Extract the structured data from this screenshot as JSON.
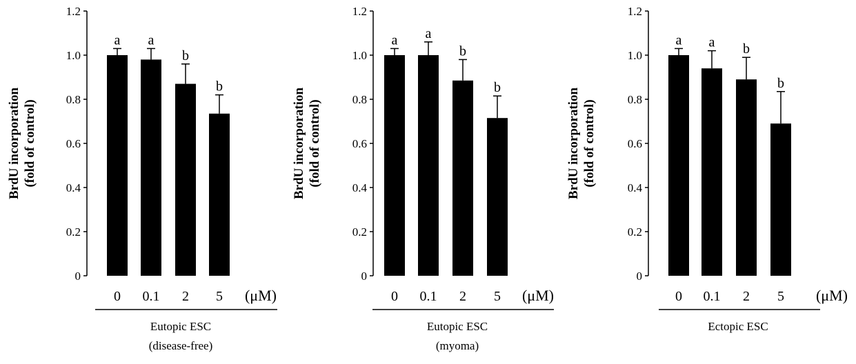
{
  "chart_data": [
    {
      "type": "bar",
      "ylabel_line1": "BrdU incorporation",
      "ylabel_line2": "(fold of control)",
      "categories": [
        "0",
        "0.1",
        "2",
        "5"
      ],
      "unit": "(μM)",
      "values": [
        1.0,
        0.98,
        0.87,
        0.735
      ],
      "errors": [
        0.03,
        0.05,
        0.09,
        0.085
      ],
      "significance": [
        "a",
        "a",
        "b",
        "b"
      ],
      "ylim": [
        0,
        1.2
      ],
      "yticks": [
        "0",
        "0.2",
        "0.4",
        "0.6",
        "0.8",
        "1.0",
        "1.2"
      ],
      "group_line1": "Eutopic ESC",
      "group_line2": "(disease-free)"
    },
    {
      "type": "bar",
      "ylabel_line1": "BrdU incorporation",
      "ylabel_line2": "(fold of control)",
      "categories": [
        "0",
        "0.1",
        "2",
        "5"
      ],
      "unit": "(μM)",
      "values": [
        1.0,
        1.0,
        0.885,
        0.715
      ],
      "errors": [
        0.03,
        0.06,
        0.095,
        0.1
      ],
      "significance": [
        "a",
        "a",
        "b",
        "b"
      ],
      "ylim": [
        0,
        1.2
      ],
      "yticks": [
        "0",
        "0.2",
        "0.4",
        "0.6",
        "0.8",
        "1.0",
        "1.2"
      ],
      "group_line1": "Eutopic ESC",
      "group_line2": "(myoma)"
    },
    {
      "type": "bar",
      "ylabel_line1": "BrdU incorporation",
      "ylabel_line2": "(fold of control)",
      "categories": [
        "0",
        "0.1",
        "2",
        "5"
      ],
      "unit": "(μM)",
      "values": [
        1.0,
        0.94,
        0.89,
        0.69
      ],
      "errors": [
        0.03,
        0.08,
        0.1,
        0.145
      ],
      "significance": [
        "a",
        "a",
        "b",
        "b"
      ],
      "ylim": [
        0,
        1.2
      ],
      "yticks": [
        "0",
        "0.2",
        "0.4",
        "0.6",
        "0.8",
        "1.0",
        "1.2"
      ],
      "group_line1": "Ectopic ESC",
      "group_line2": ""
    }
  ]
}
